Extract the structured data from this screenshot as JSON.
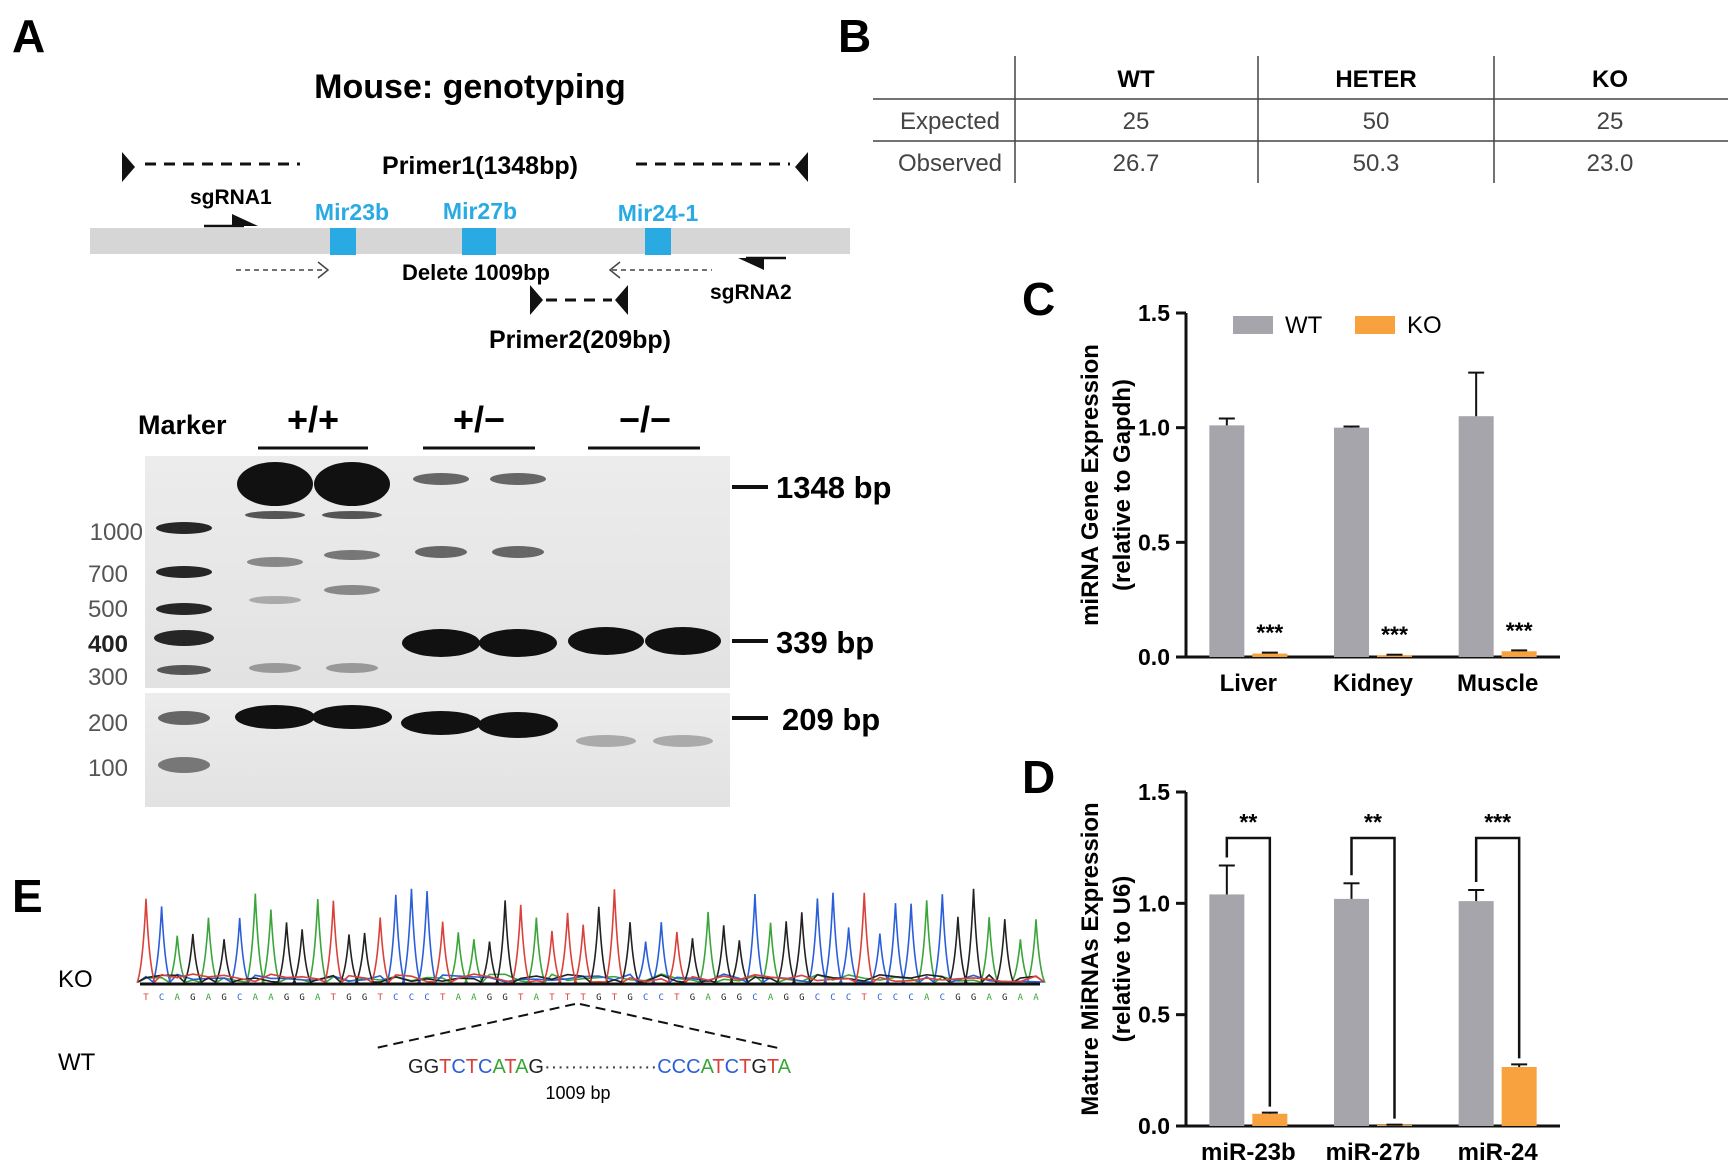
{
  "panels": {
    "a": "A",
    "b": "B",
    "c": "C",
    "d": "D",
    "e": "E"
  },
  "panel_a": {
    "title": "Mouse: genotyping",
    "primer1": "Primer1(1348bp)",
    "primer2": "Primer2(209bp)",
    "sgrna1": "sgRNA1",
    "sgrna2": "sgRNA2",
    "genes": [
      "Mir23b",
      "Mir27b",
      "Mir24-1"
    ],
    "delete_label": "Delete 1009bp",
    "gel": {
      "marker_label": "Marker",
      "groups": [
        "+/+",
        "+/−",
        "−/−"
      ],
      "ladder": [
        "1000",
        "700",
        "500",
        "400",
        "300",
        "200",
        "100"
      ],
      "band_labels": [
        "1348 bp",
        "339 bp",
        "209 bp"
      ]
    },
    "colors": {
      "gene": "#2aaae2",
      "bar": "#d6d6d6"
    }
  },
  "panel_b": {
    "columns": [
      "WT",
      "HETER",
      "KO"
    ],
    "rows": [
      {
        "label": "Expected",
        "values": [
          "25",
          "50",
          "25"
        ]
      },
      {
        "label": "Observed",
        "values": [
          "26.7",
          "50.3",
          "23.0"
        ]
      }
    ]
  },
  "chart_data": [
    {
      "type": "bar",
      "panel": "C",
      "ylabel": "miRNA Gene Expression\n(relative to Gapdh)",
      "ylim": [
        0,
        1.5
      ],
      "yticks": [
        "0.0",
        "0.5",
        "1.0",
        "1.5"
      ],
      "categories": [
        "Liver",
        "Kidney",
        "Muscle"
      ],
      "series": [
        {
          "name": "WT",
          "color": "#a5a5ab",
          "values": [
            1.01,
            1.0,
            1.05
          ],
          "errors": [
            0.03,
            0.005,
            0.19
          ]
        },
        {
          "name": "KO",
          "color": "#f7a13f",
          "values": [
            0.015,
            0.008,
            0.025
          ],
          "errors": [
            0.004,
            0.002,
            0.004
          ]
        }
      ],
      "annotations": [
        "***",
        "***",
        "***"
      ],
      "legend": "top"
    },
    {
      "type": "bar",
      "panel": "D",
      "ylabel": "Mature MiRNAs Expression\n(relative to U6)",
      "ylim": [
        0,
        1.5
      ],
      "yticks": [
        "0.0",
        "0.5",
        "1.0",
        "1.5"
      ],
      "categories": [
        "miR-23b",
        "miR-27b",
        "miR-24"
      ],
      "series": [
        {
          "color": "#a5a5ab",
          "values": [
            1.04,
            1.02,
            1.01
          ],
          "errors": [
            0.13,
            0.07,
            0.05
          ]
        },
        {
          "color": "#f7a13f",
          "values": [
            0.055,
            0.005,
            0.265
          ],
          "errors": [
            0.005,
            0.001,
            0.012
          ]
        }
      ],
      "annotations": [
        "**",
        "**",
        "***"
      ]
    }
  ],
  "panel_e": {
    "ko_label": "KO",
    "wt_label": "WT",
    "ko_sequence": "TCAGAGCAAGGATGGTCCCTAAGGTATTTGTGCCTGAGGCAGGCCCTCCCACGGAGAA",
    "wt_left": "GGTCTCATAG",
    "wt_dots": "·················",
    "wt_right": "CCCATCTGTA",
    "deletion_label": "1009 bp",
    "base_colors": {
      "A": "#3ba53b",
      "C": "#2b5fd9",
      "G": "#222222",
      "T": "#d9413a"
    }
  }
}
